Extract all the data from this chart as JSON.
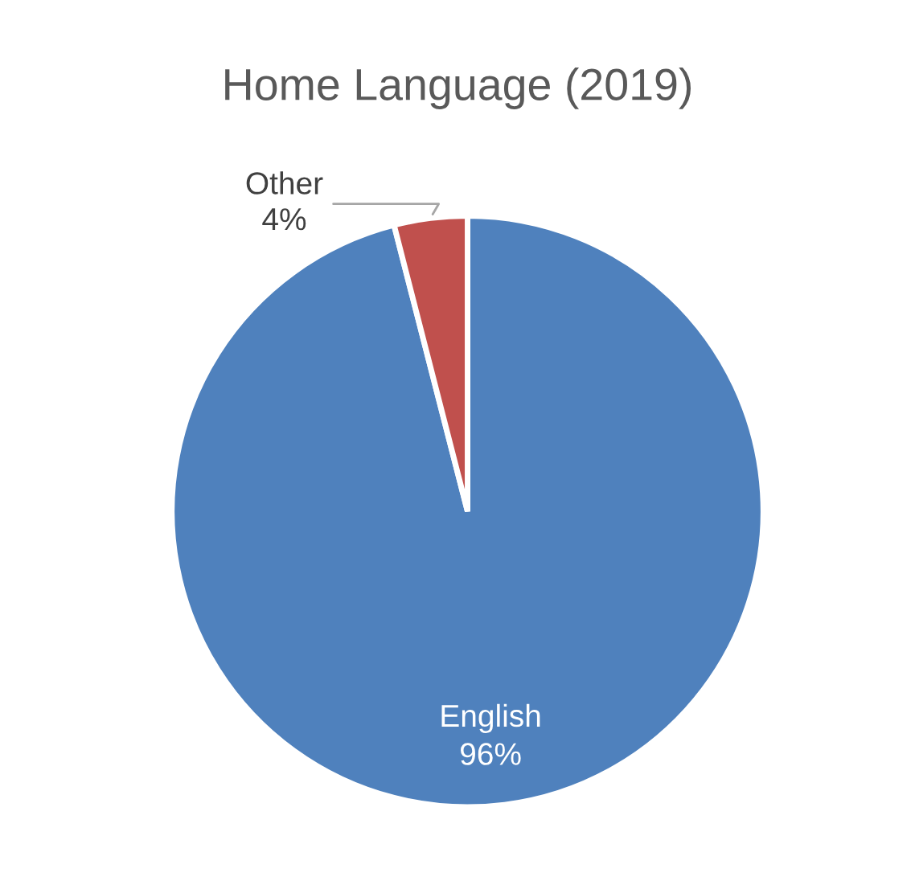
{
  "chart_data": {
    "type": "pie",
    "title": "Home Language (2019)",
    "categories": [
      "English",
      "Other"
    ],
    "values": [
      96,
      4
    ],
    "colors": [
      "#4f81bd",
      "#c0504d"
    ],
    "value_labels": [
      "96%",
      "4%"
    ],
    "legend": false
  }
}
